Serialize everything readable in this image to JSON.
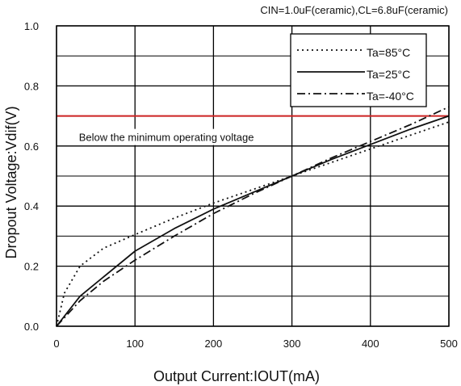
{
  "chart_data": {
    "type": "line",
    "title": "CIN=1.0uF(ceramic),CL=6.8uF(ceramic)",
    "xlabel": "Output Current:IOUT(mA)",
    "ylabel": "Dropout Voltage:Vdif(V)",
    "xlim": [
      0,
      500
    ],
    "ylim": [
      0,
      1.0
    ],
    "x_ticks": [
      0,
      100,
      200,
      300,
      400,
      500
    ],
    "y_ticks": [
      0.0,
      0.2,
      0.4,
      0.6,
      0.8,
      1.0
    ],
    "x_tick_labels": [
      "0",
      "100",
      "200",
      "300",
      "400",
      "500"
    ],
    "y_tick_labels": [
      "0.0",
      "0.2",
      "0.4",
      "0.6",
      "0.8",
      "1.0"
    ],
    "grid": true,
    "legend_position": "top-right",
    "series": [
      {
        "name": "Ta=85°C",
        "style": "dotted",
        "color": "#111111",
        "x": [
          0,
          10,
          30,
          60,
          100,
          150,
          200,
          250,
          300,
          350,
          400,
          450,
          500
        ],
        "y": [
          0,
          0.11,
          0.2,
          0.26,
          0.305,
          0.36,
          0.41,
          0.455,
          0.5,
          0.545,
          0.59,
          0.635,
          0.68
        ]
      },
      {
        "name": "Ta=25°C",
        "style": "solid",
        "color": "#111111",
        "x": [
          0,
          30,
          100,
          150,
          200,
          250,
          300,
          350,
          400,
          450,
          500
        ],
        "y": [
          0,
          0.1,
          0.25,
          0.325,
          0.39,
          0.445,
          0.5,
          0.555,
          0.605,
          0.655,
          0.7
        ]
      },
      {
        "name": "Ta=-40°C",
        "style": "dashdot",
        "color": "#111111",
        "x": [
          0,
          30,
          60,
          100,
          150,
          200,
          250,
          300,
          350,
          400,
          450,
          500
        ],
        "y": [
          0,
          0.085,
          0.15,
          0.22,
          0.3,
          0.375,
          0.44,
          0.5,
          0.56,
          0.615,
          0.67,
          0.73
        ]
      }
    ],
    "reference_line": {
      "y": 0.7,
      "color": "#cc2222"
    },
    "annotation": {
      "text": "Below the minimum operating voltage",
      "x": 140,
      "y": 0.63
    }
  }
}
